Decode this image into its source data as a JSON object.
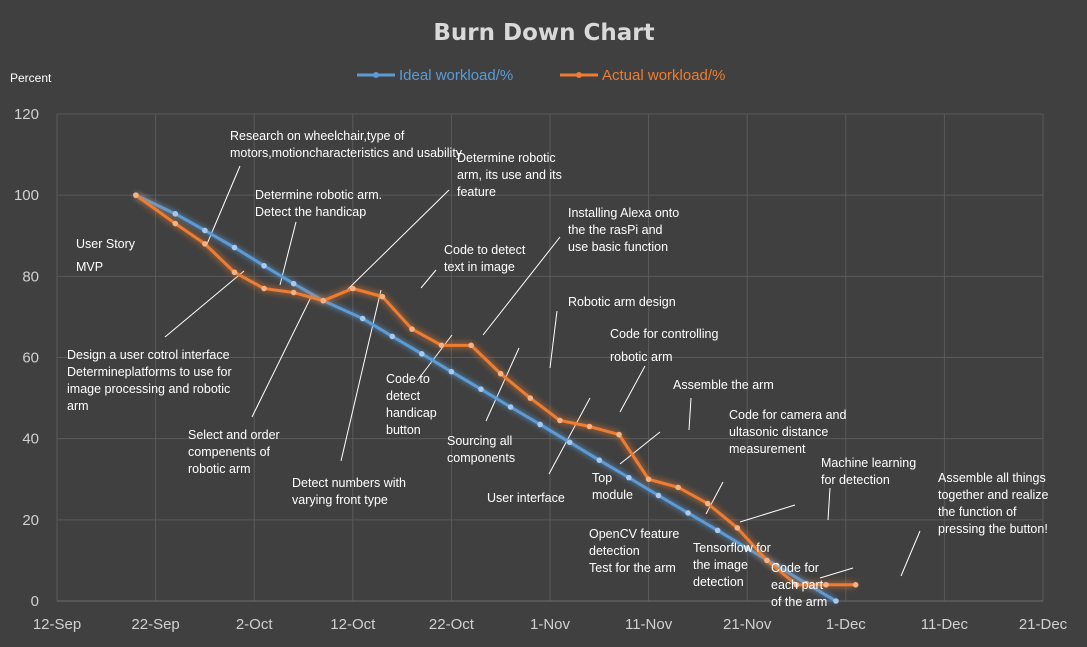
{
  "chart_data": {
    "type": "line",
    "title": "Burn Down Chart",
    "ylabel": "Percent",
    "xlabel": "",
    "ylim": [
      0,
      120
    ],
    "yticks": [
      0,
      20,
      40,
      60,
      80,
      100,
      120
    ],
    "xlim": [
      "2023-09-12",
      "2023-12-21"
    ],
    "xtick_labels": [
      "12-Sep",
      "22-Sep",
      "2-Oct",
      "12-Oct",
      "22-Oct",
      "1-Nov",
      "11-Nov",
      "21-Nov",
      "1-Dec",
      "11-Dec",
      "21-Dec"
    ],
    "xtick_dates": [
      "2023-09-12",
      "2023-09-22",
      "2023-10-02",
      "2023-10-12",
      "2023-10-22",
      "2023-11-01",
      "2023-11-11",
      "2023-11-21",
      "2023-12-01",
      "2023-12-11",
      "2023-12-21"
    ],
    "grid": true,
    "legend_position": "top",
    "series": [
      {
        "name": "Ideal workload/%",
        "color": "#5B9BD5",
        "x": [
          "2023-09-20",
          "2023-09-24",
          "2023-09-27",
          "2023-09-30",
          "2023-10-03",
          "2023-10-06",
          "2023-10-09",
          "2023-10-13",
          "2023-10-16",
          "2023-10-19",
          "2023-10-22",
          "2023-10-25",
          "2023-10-28",
          "2023-10-31",
          "2023-11-03",
          "2023-11-06",
          "2023-11-09",
          "2023-11-12",
          "2023-11-15",
          "2023-11-18",
          "2023-11-21",
          "2023-11-24",
          "2023-11-27",
          "2023-11-30",
          "2023-12-04",
          "2023-12-07",
          "2023-12-10"
        ],
        "y": [
          100,
          95.4,
          91.3,
          87.1,
          82.6,
          78.2,
          74,
          69.6,
          65.2,
          60.9,
          56.5,
          52.2,
          47.8,
          43.5,
          39.1,
          34.7,
          30.4,
          26,
          21.7,
          17.4,
          13,
          8.7,
          4.3,
          0,
          0,
          0,
          0
        ],
        "y_note_hidden": true
      },
      {
        "name": "Actual workload/%",
        "color": "#ED7D31",
        "x": [
          "2023-09-20",
          "2023-09-24",
          "2023-09-27",
          "2023-09-30",
          "2023-10-03",
          "2023-10-06",
          "2023-10-09",
          "2023-10-12",
          "2023-10-15",
          "2023-10-18",
          "2023-10-21",
          "2023-10-24",
          "2023-10-27",
          "2023-10-30",
          "2023-11-02",
          "2023-11-05",
          "2023-11-08",
          "2023-11-11",
          "2023-11-14",
          "2023-11-17",
          "2023-11-20",
          "2023-11-23",
          "2023-11-26",
          "2023-11-29",
          "2023-12-02"
        ],
        "y": [
          100,
          93,
          88,
          81,
          77,
          76,
          74,
          77,
          75,
          67,
          63,
          63,
          56,
          50,
          44.5,
          43,
          41,
          30,
          28,
          24,
          18,
          10,
          4,
          4,
          4
        ]
      }
    ],
    "annotations": [
      {
        "lines": [
          "Research on wheelchair,type of",
          "motors,motioncharacteristics and usability"
        ]
      },
      {
        "lines": [
          "Determine robotic",
          "arm, its use and its",
          "feature"
        ]
      },
      {
        "lines": [
          "Determine robotic arm.",
          "Detect the handicap"
        ]
      },
      {
        "lines": [
          "Installing Alexa onto",
          "the the rasPi and",
          "use basic function"
        ]
      },
      {
        "lines": [
          "User Story"
        ]
      },
      {
        "lines": [
          "MVP"
        ]
      },
      {
        "lines": [
          "Code to detect",
          "text in image"
        ]
      },
      {
        "lines": [
          "Robotic arm design"
        ]
      },
      {
        "lines": [
          "Code for controlling"
        ]
      },
      {
        "lines": [
          "robotic arm"
        ]
      },
      {
        "lines": [
          "Design a user cotrol interface",
          "Determineplatforms to use for",
          "image processing and robotic",
          "arm"
        ]
      },
      {
        "lines": [
          "Code to",
          "detect",
          "handicap",
          "button"
        ]
      },
      {
        "lines": [
          "Assemble the arm"
        ]
      },
      {
        "lines": [
          "Code for camera and",
          "ultasonic distance",
          "measurement"
        ]
      },
      {
        "lines": [
          "Select and order",
          "compenents of",
          "robotic arm"
        ]
      },
      {
        "lines": [
          "Sourcing all",
          "components"
        ]
      },
      {
        "lines": [
          "Machine learning",
          "for detection"
        ]
      },
      {
        "lines": [
          "Top",
          "module"
        ]
      },
      {
        "lines": [
          "Assemble all things",
          "together and realize",
          "the function of",
          "pressing the button!"
        ]
      },
      {
        "lines": [
          "Detect numbers with",
          "varying front type"
        ]
      },
      {
        "lines": [
          "User interface"
        ]
      },
      {
        "lines": [
          "OpenCV feature",
          "detection",
          "Test for the arm"
        ]
      },
      {
        "lines": [
          "Tensorflow for",
          "the image",
          "detection"
        ]
      },
      {
        "lines": [
          "Code for",
          "each part",
          "of the arm"
        ]
      }
    ]
  }
}
